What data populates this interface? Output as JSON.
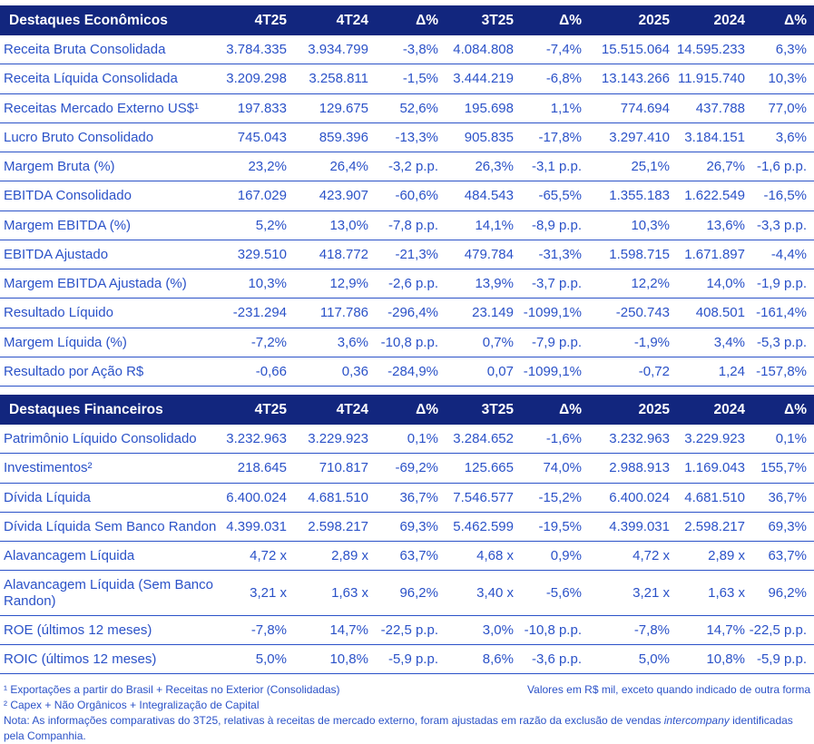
{
  "colors": {
    "header_navy": "#12267E",
    "text_blue": "#2B52C8"
  },
  "tables": [
    {
      "title": "Destaques Econômicos",
      "columns": [
        "4T25",
        "4T24",
        "Δ%",
        "3T25",
        "Δ%",
        "2025",
        "2024",
        "Δ%"
      ],
      "rows": [
        {
          "label": "Receita Bruta Consolidada",
          "values": [
            "3.784.335",
            "3.934.799",
            "-3,8%",
            "4.084.808",
            "-7,4%",
            "15.515.064",
            "14.595.233",
            "6,3%"
          ]
        },
        {
          "label": "Receita Líquida Consolidada",
          "values": [
            "3.209.298",
            "3.258.811",
            "-1,5%",
            "3.444.219",
            "-6,8%",
            "13.143.266",
            "11.915.740",
            "10,3%"
          ]
        },
        {
          "label": "Receitas Mercado Externo US$¹",
          "values": [
            "197.833",
            "129.675",
            "52,6%",
            "195.698",
            "1,1%",
            "774.694",
            "437.788",
            "77,0%"
          ]
        },
        {
          "label": "Lucro Bruto Consolidado",
          "values": [
            "745.043",
            "859.396",
            "-13,3%",
            "905.835",
            "-17,8%",
            "3.297.410",
            "3.184.151",
            "3,6%"
          ]
        },
        {
          "label": "Margem Bruta (%)",
          "values": [
            "23,2%",
            "26,4%",
            "-3,2 p.p.",
            "26,3%",
            "-3,1 p.p.",
            "25,1%",
            "26,7%",
            "-1,6 p.p."
          ]
        },
        {
          "label": "EBITDA Consolidado",
          "values": [
            "167.029",
            "423.907",
            "-60,6%",
            "484.543",
            "-65,5%",
            "1.355.183",
            "1.622.549",
            "-16,5%"
          ]
        },
        {
          "label": "Margem EBITDA (%)",
          "values": [
            "5,2%",
            "13,0%",
            "-7,8 p.p.",
            "14,1%",
            "-8,9 p.p.",
            "10,3%",
            "13,6%",
            "-3,3 p.p."
          ]
        },
        {
          "label": "EBITDA Ajustado",
          "values": [
            "329.510",
            "418.772",
            "-21,3%",
            "479.784",
            "-31,3%",
            "1.598.715",
            "1.671.897",
            "-4,4%"
          ]
        },
        {
          "label": "Margem EBITDA Ajustada (%)",
          "values": [
            "10,3%",
            "12,9%",
            "-2,6 p.p.",
            "13,9%",
            "-3,7 p.p.",
            "12,2%",
            "14,0%",
            "-1,9 p.p."
          ]
        },
        {
          "label": "Resultado Líquido",
          "values": [
            "-231.294",
            "117.786",
            "-296,4%",
            "23.149",
            "-1099,1%",
            "-250.743",
            "408.501",
            "-161,4%"
          ]
        },
        {
          "label": "Margem Líquida (%)",
          "values": [
            "-7,2%",
            "3,6%",
            "-10,8 p.p.",
            "0,7%",
            "-7,9 p.p.",
            "-1,9%",
            "3,4%",
            "-5,3 p.p."
          ]
        },
        {
          "label": "Resultado por Ação R$",
          "values": [
            "-0,66",
            "0,36",
            "-284,9%",
            "0,07",
            "-1099,1%",
            "-0,72",
            "1,24",
            "-157,8%"
          ]
        }
      ]
    },
    {
      "title": "Destaques Financeiros",
      "columns": [
        "4T25",
        "4T24",
        "Δ%",
        "3T25",
        "Δ%",
        "2025",
        "2024",
        "Δ%"
      ],
      "rows": [
        {
          "label": "Patrimônio Líquido Consolidado",
          "values": [
            "3.232.963",
            "3.229.923",
            "0,1%",
            "3.284.652",
            "-1,6%",
            "3.232.963",
            "3.229.923",
            "0,1%"
          ]
        },
        {
          "label": "Investimentos²",
          "values": [
            "218.645",
            "710.817",
            "-69,2%",
            "125.665",
            "74,0%",
            "2.988.913",
            "1.169.043",
            "155,7%"
          ]
        },
        {
          "label": "Dívida Líquida",
          "values": [
            "6.400.024",
            "4.681.510",
            "36,7%",
            "7.546.577",
            "-15,2%",
            "6.400.024",
            "4.681.510",
            "36,7%"
          ]
        },
        {
          "label": "Dívida Líquida Sem Banco Randon",
          "values": [
            "4.399.031",
            "2.598.217",
            "69,3%",
            "5.462.599",
            "-19,5%",
            "4.399.031",
            "2.598.217",
            "69,3%"
          ]
        },
        {
          "label": "Alavancagem Líquida",
          "values": [
            "4,72 x",
            "2,89 x",
            "63,7%",
            "4,68 x",
            "0,9%",
            "4,72 x",
            "2,89 x",
            "63,7%"
          ]
        },
        {
          "label": "Alavancagem Líquida (Sem Banco Randon)",
          "values": [
            "3,21 x",
            "1,63 x",
            "96,2%",
            "3,40 x",
            "-5,6%",
            "3,21 x",
            "1,63 x",
            "96,2%"
          ]
        },
        {
          "label": "ROE (últimos 12 meses)",
          "values": [
            "-7,8%",
            "14,7%",
            "-22,5 p.p.",
            "3,0%",
            "-10,8 p.p.",
            "-7,8%",
            "14,7%",
            "-22,5 p.p."
          ]
        },
        {
          "label": "ROIC (últimos 12 meses)",
          "values": [
            "5,0%",
            "10,8%",
            "-5,9 p.p.",
            "8,6%",
            "-3,6 p.p.",
            "5,0%",
            "10,8%",
            "-5,9 p.p."
          ]
        }
      ]
    }
  ],
  "footnotes": {
    "footnote1": "¹ Exportações a partir do Brasil + Receitas no Exterior (Consolidadas)",
    "values_note": "Valores em R$ mil, exceto quando indicado de outra forma",
    "footnote2": "² Capex + Não Orgânicos + Integralização de Capital",
    "nota_prefix": "Nota: As informações comparativas do 3T25, relativas à receitas de mercado externo, foram ajustadas em razão da exclusão de vendas ",
    "nota_italic": "intercompany",
    "nota_suffix": " identificadas pela Companhia."
  }
}
